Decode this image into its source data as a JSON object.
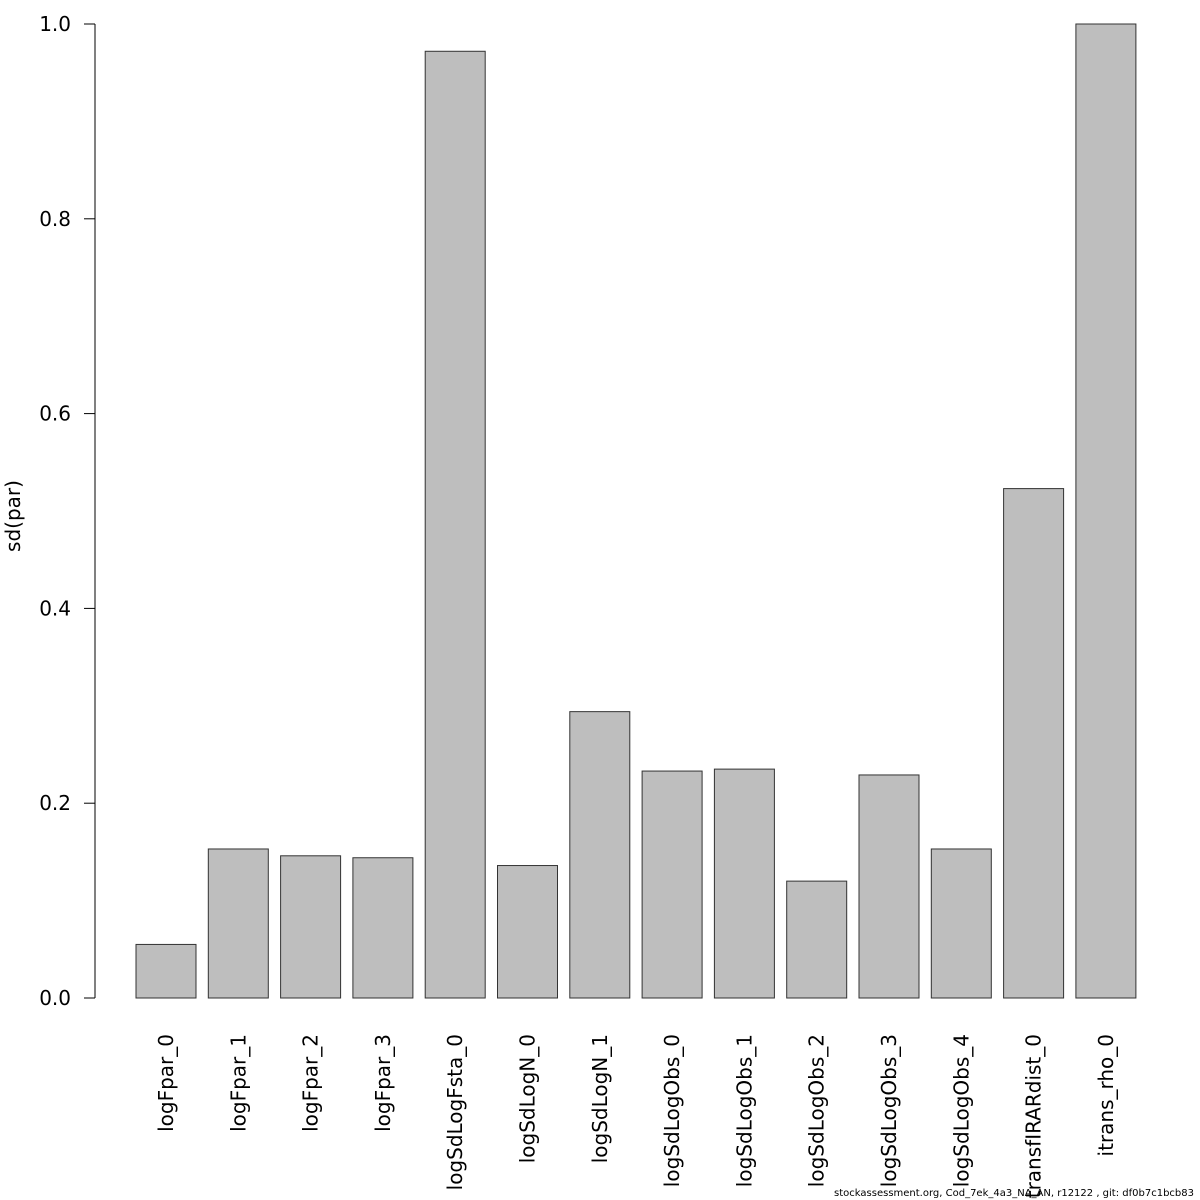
{
  "footer": "stockassessment.org, Cod_7ek_4a3_NA_AN, r12122 , git: df0b7c1bcb83",
  "chart_data": {
    "type": "bar",
    "ylabel": "sd(par)",
    "xlabel": "",
    "ylim": [
      0,
      1
    ],
    "yticks": [
      "0.0",
      "0.2",
      "0.4",
      "0.6",
      "0.8",
      "1.0"
    ],
    "categories": [
      "logFpar_0",
      "logFpar_1",
      "logFpar_2",
      "logFpar_3",
      "logSdLogFsta_0",
      "logSdLogN_0",
      "logSdLogN_1",
      "logSdLogObs_0",
      "logSdLogObs_1",
      "logSdLogObs_2",
      "logSdLogObs_3",
      "logSdLogObs_4",
      "transfIRARdist_0",
      "itrans_rho_0"
    ],
    "values": [
      0.055,
      0.153,
      0.146,
      0.144,
      0.972,
      0.136,
      0.294,
      0.233,
      0.235,
      0.12,
      0.229,
      0.153,
      0.523,
      1.0
    ],
    "bar_color": "#bebebe",
    "bar_stroke": "#333333",
    "grid": false
  }
}
